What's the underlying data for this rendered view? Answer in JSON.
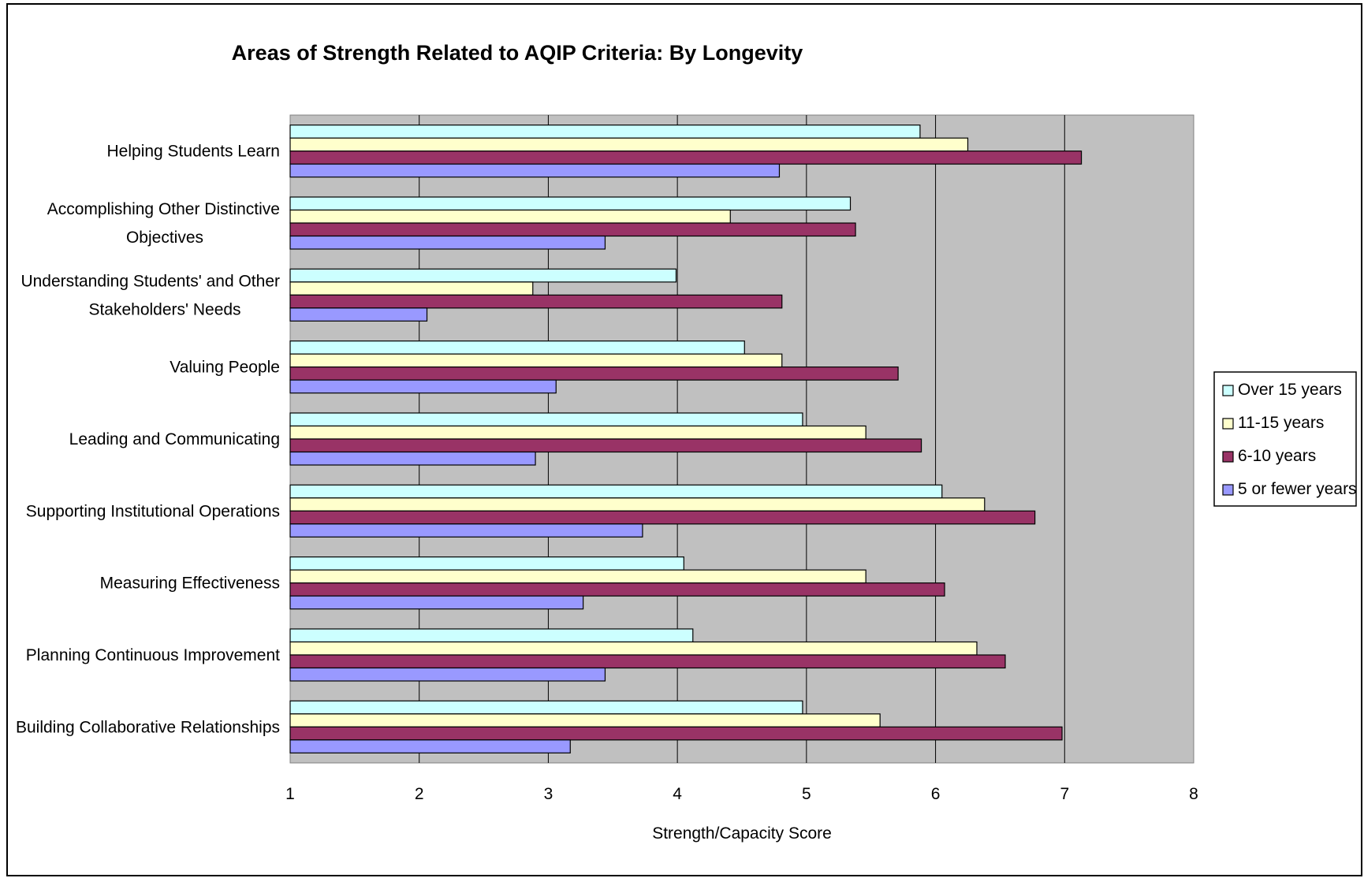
{
  "chart_data": {
    "type": "bar",
    "orientation": "horizontal",
    "title": "Areas of Strength Related to AQIP Criteria: By Longevity",
    "xlabel": "Strength/Capacity Score",
    "ylabel": "",
    "xlim": [
      1,
      8
    ],
    "x_ticks": [
      "1",
      "2",
      "3",
      "4",
      "5",
      "6",
      "7",
      "8"
    ],
    "grid": "vertical",
    "legend_position": "right",
    "categories": [
      [
        "Helping Students Learn"
      ],
      [
        "Accomplishing Other Distinctive",
        "Objectives"
      ],
      [
        "Understanding Students' and Other",
        "Stakeholders' Needs"
      ],
      [
        "Valuing People"
      ],
      [
        "Leading and Communicating"
      ],
      [
        "Supporting Institutional Operations"
      ],
      [
        "Measuring Effectiveness"
      ],
      [
        "Planning Continuous Improvement"
      ],
      [
        "Building Collaborative Relationships"
      ]
    ],
    "series": [
      {
        "name": "Over 15 years",
        "color": "#ccffff",
        "values": [
          5.88,
          5.34,
          3.99,
          4.52,
          4.97,
          6.05,
          4.05,
          4.12,
          4.97
        ]
      },
      {
        "name": "11-15 years",
        "color": "#ffffcc",
        "values": [
          6.25,
          4.41,
          2.88,
          4.81,
          5.46,
          6.38,
          5.46,
          6.32,
          5.57
        ]
      },
      {
        "name": "6-10 years",
        "color": "#993366",
        "values": [
          7.13,
          5.38,
          4.81,
          5.71,
          5.89,
          6.77,
          6.07,
          6.54,
          6.98
        ]
      },
      {
        "name": "5 or fewer years",
        "color": "#9999ff",
        "values": [
          4.79,
          3.44,
          2.06,
          3.06,
          2.9,
          3.73,
          3.27,
          3.44,
          3.17
        ]
      }
    ],
    "plot_background": "#c0c0c0",
    "gridline_color": "#000000"
  }
}
